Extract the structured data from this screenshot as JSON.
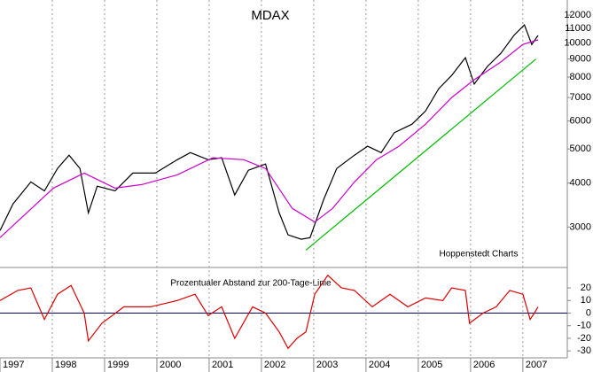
{
  "chart_data": [
    {
      "type": "line",
      "title": "MDAX",
      "annotation": "Hoppenstedt Charts",
      "log_scale": true,
      "xlim": [
        1997,
        2007.85
      ],
      "ylim": [
        2330,
        13240
      ],
      "yticks": [
        3000,
        4000,
        5000,
        6000,
        7000,
        8000,
        9000,
        10000,
        11000,
        12000
      ],
      "series": [
        {
          "color": "#000000",
          "x": [
            1997.0,
            1997.25,
            1997.59,
            1997.85,
            1998.1,
            1998.32,
            1998.53,
            1998.69,
            1998.86,
            1999.2,
            1999.54,
            1999.97,
            2000.39,
            2000.64,
            2000.98,
            2001.24,
            2001.49,
            2001.75,
            2002.08,
            2002.34,
            2002.51,
            2002.76,
            2002.93,
            2003.19,
            2003.44,
            2003.78,
            2004.03,
            2004.29,
            2004.54,
            2004.88,
            2005.14,
            2005.39,
            2005.64,
            2005.9,
            2006.07,
            2006.32,
            2006.58,
            2006.83,
            2007.03,
            2007.17,
            2007.29
          ],
          "values": [
            2930,
            3490,
            4030,
            3800,
            4400,
            4800,
            4400,
            3290,
            3920,
            3800,
            4270,
            4270,
            4660,
            4880,
            4660,
            4720,
            3700,
            4350,
            4530,
            3290,
            2850,
            2770,
            2800,
            3590,
            4400,
            4800,
            5090,
            4880,
            5560,
            5880,
            6410,
            7410,
            8090,
            9080,
            7640,
            8570,
            9350,
            10500,
            11250,
            9900,
            10500
          ]
        },
        {
          "color": "#cc00cc",
          "x": [
            1997.0,
            1997.51,
            1998.02,
            1998.61,
            1999.2,
            1999.71,
            2000.39,
            2001.07,
            2001.66,
            2002.08,
            2002.59,
            2003.02,
            2003.36,
            2003.78,
            2004.2,
            2004.63,
            2005.14,
            2005.64,
            2006.07,
            2006.58,
            2007.0,
            2007.29
          ],
          "values": [
            2800,
            3290,
            3870,
            4270,
            3870,
            3960,
            4220,
            4720,
            4660,
            4400,
            3390,
            3100,
            3390,
            4030,
            4660,
            5090,
            5880,
            7000,
            7860,
            8830,
            9900,
            10200
          ]
        },
        {
          "color": "#00bb00",
          "x": [
            2002.85,
            2007.25
          ],
          "values": [
            2580,
            9000
          ]
        }
      ]
    },
    {
      "type": "line",
      "title": "Prozentualer Abstand zur 200-Tage-Linie",
      "xlim": [
        1997,
        2007.85
      ],
      "ylim": [
        -35.5,
        35.5
      ],
      "yticks": [
        20,
        10,
        0,
        -10,
        -20,
        -30
      ],
      "xticks": [
        1997,
        1998,
        1999,
        2000,
        2001,
        2002,
        2003,
        2004,
        2005,
        2006,
        2007
      ],
      "series": [
        {
          "color": "#dd0000",
          "x": [
            1997.0,
            1997.34,
            1997.59,
            1997.85,
            1998.1,
            1998.36,
            1998.61,
            1998.69,
            1998.95,
            1999.37,
            1999.88,
            2000.39,
            2000.73,
            2000.98,
            2001.24,
            2001.49,
            2001.83,
            2002.08,
            2002.34,
            2002.51,
            2002.68,
            2002.85,
            2003.02,
            2003.27,
            2003.53,
            2003.78,
            2004.12,
            2004.46,
            2004.8,
            2005.14,
            2005.47,
            2005.64,
            2005.9,
            2005.98,
            2006.24,
            2006.49,
            2006.75,
            2007.0,
            2007.14,
            2007.22,
            2007.29
          ],
          "values": [
            10,
            18,
            20,
            -5,
            15,
            22,
            0,
            -22,
            -8,
            5,
            5,
            10,
            15,
            -2,
            5,
            -20,
            5,
            0,
            -15,
            -28,
            -20,
            -15,
            15,
            30,
            20,
            18,
            5,
            15,
            5,
            12,
            10,
            20,
            18,
            -8,
            0,
            5,
            18,
            15,
            -5,
            0,
            5
          ]
        }
      ]
    }
  ]
}
